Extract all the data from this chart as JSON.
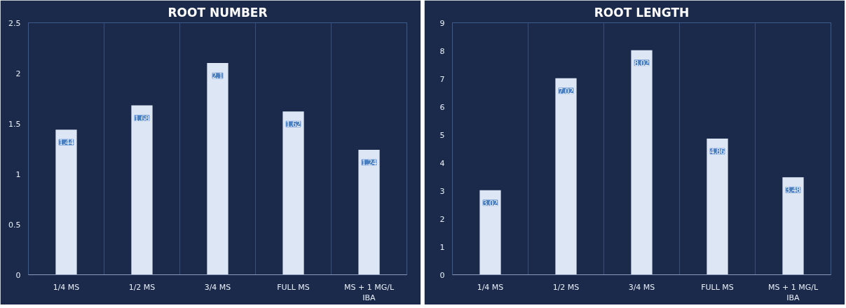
{
  "chart_data": [
    {
      "type": "bar",
      "title": "ROOT NUMBER",
      "categories": [
        "1/4 MS",
        "1/2 MS",
        "3/4 MS",
        "FULL MS",
        "MS + 1 MG/L IBA"
      ],
      "values": [
        1.44,
        1.68,
        2.1,
        1.62,
        1.24
      ],
      "color": "#dde6f5",
      "ylim": [
        0,
        2.5
      ],
      "yticks": [
        0,
        0.5,
        1,
        1.5,
        2,
        2.5
      ],
      "data_labels": true,
      "grid": "x"
    },
    {
      "type": "bar",
      "title": "ROOT LENGTH",
      "categories": [
        "1/4 MS",
        "1/2 MS",
        "3/4 MS",
        "FULL MS",
        "MS + 1 MG/L IBA"
      ],
      "values": [
        3.02,
        7.02,
        8.02,
        4.86,
        3.48
      ],
      "color": "#dde6f5",
      "ylim": [
        0,
        9
      ],
      "yticks": [
        0,
        1,
        2,
        3,
        4,
        5,
        6,
        7,
        8,
        9
      ],
      "data_labels": true,
      "grid": "x"
    }
  ]
}
